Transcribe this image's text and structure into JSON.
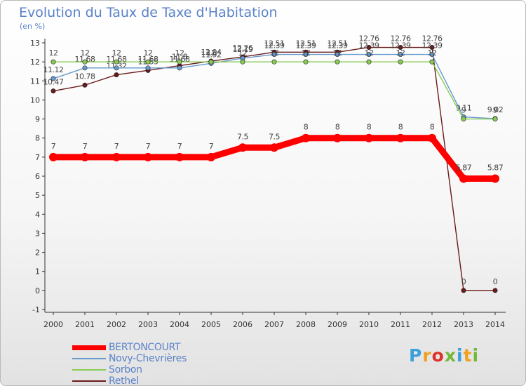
{
  "chart_data": {
    "type": "line",
    "title": "Evolution du Taux de Taxe d'Habitation",
    "subtitle": "(en %)",
    "xlabel": "",
    "ylabel": "",
    "x": [
      2000,
      2001,
      2002,
      2003,
      2004,
      2005,
      2006,
      2007,
      2008,
      2009,
      2010,
      2011,
      2012,
      2013,
      2014
    ],
    "ylim": [
      -1,
      13
    ],
    "yticks": [
      -1,
      0,
      1,
      2,
      3,
      4,
      5,
      6,
      7,
      8,
      9,
      10,
      11,
      12,
      13
    ],
    "grid": false,
    "legend_position": "bottom-left",
    "series": [
      {
        "name": "BERTONCOURT",
        "color": "#ff0000",
        "values": [
          7,
          7,
          7,
          7,
          7,
          7,
          7.5,
          7.5,
          8,
          8,
          8,
          8,
          8,
          5.87,
          5.87
        ],
        "labels": [
          "7",
          "7",
          "7",
          "7",
          "7",
          "7",
          "7.5",
          "7.5",
          "8",
          "8",
          "8",
          "8",
          "8",
          "5.87",
          "5.87"
        ]
      },
      {
        "name": "Novy-Chevrières",
        "color": "#6699cc",
        "values": [
          11.12,
          11.68,
          11.68,
          11.68,
          11.68,
          11.92,
          12.19,
          12.39,
          12.39,
          12.39,
          12.39,
          12.39,
          12.39,
          9.11,
          9.02
        ],
        "labels": [
          "11.12",
          "11.68",
          "11.68",
          "11.68",
          "11.68",
          "11.92",
          "12.19",
          "12.39",
          "12.39",
          "12.39",
          "12.39",
          "12.39",
          "12.39",
          "9.11",
          "9.02"
        ]
      },
      {
        "name": "Sorbon",
        "color": "#88cc55",
        "values": [
          12,
          12,
          12,
          12,
          12,
          12,
          12,
          12,
          12,
          12,
          12,
          12,
          12,
          9,
          9
        ],
        "labels": [
          "12",
          "12",
          "12",
          "12",
          "12",
          "12",
          "12",
          "12",
          "12",
          "12",
          "12",
          "12",
          "12",
          "9",
          "9"
        ]
      },
      {
        "name": "Rethel",
        "color": "#6b1a1a",
        "values": [
          10.47,
          10.78,
          11.32,
          11.55,
          11.8,
          12.04,
          12.26,
          12.51,
          12.51,
          12.51,
          12.76,
          12.76,
          12.76,
          0,
          0
        ],
        "labels": [
          "10.47",
          "10.78",
          "11.32",
          "11.55",
          "11.8",
          "12.04",
          "12.26",
          "12.51",
          "12.51",
          "12.51",
          "12.76",
          "12.76",
          "12.76",
          "0",
          "0"
        ]
      }
    ]
  },
  "logo": {
    "letters": [
      "P",
      "r",
      "o",
      "x",
      "i",
      "t",
      "i"
    ],
    "colors": [
      "#3aa0dc",
      "#f0a020",
      "#e0302a",
      "#72b83a",
      "#3aa0dc",
      "#f0a020",
      "#72b83a"
    ]
  }
}
